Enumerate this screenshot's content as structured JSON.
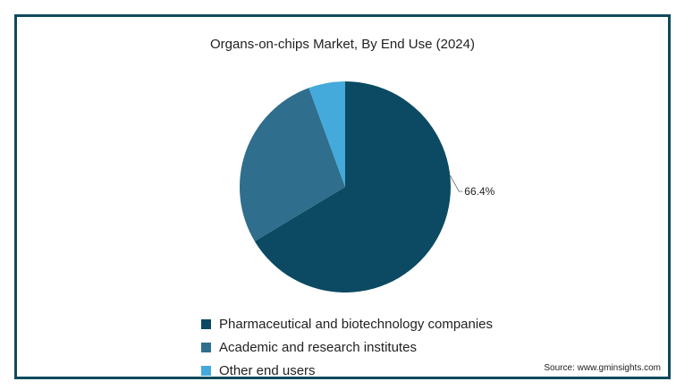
{
  "chart_data": {
    "type": "pie",
    "title": "Organs-on-chips Market, By End Use (2024)",
    "categories": [
      "Pharmaceutical and biotechnology companies",
      "Academic and research institutes",
      "Other end users"
    ],
    "values": [
      66.4,
      28.0,
      5.6
    ],
    "colors": [
      "#0b4a62",
      "#2f6e8c",
      "#44a9db"
    ],
    "data_labels": [
      "66.4%",
      "",
      ""
    ],
    "legend_position": "bottom"
  },
  "source": "Source: www.gminsights.com"
}
